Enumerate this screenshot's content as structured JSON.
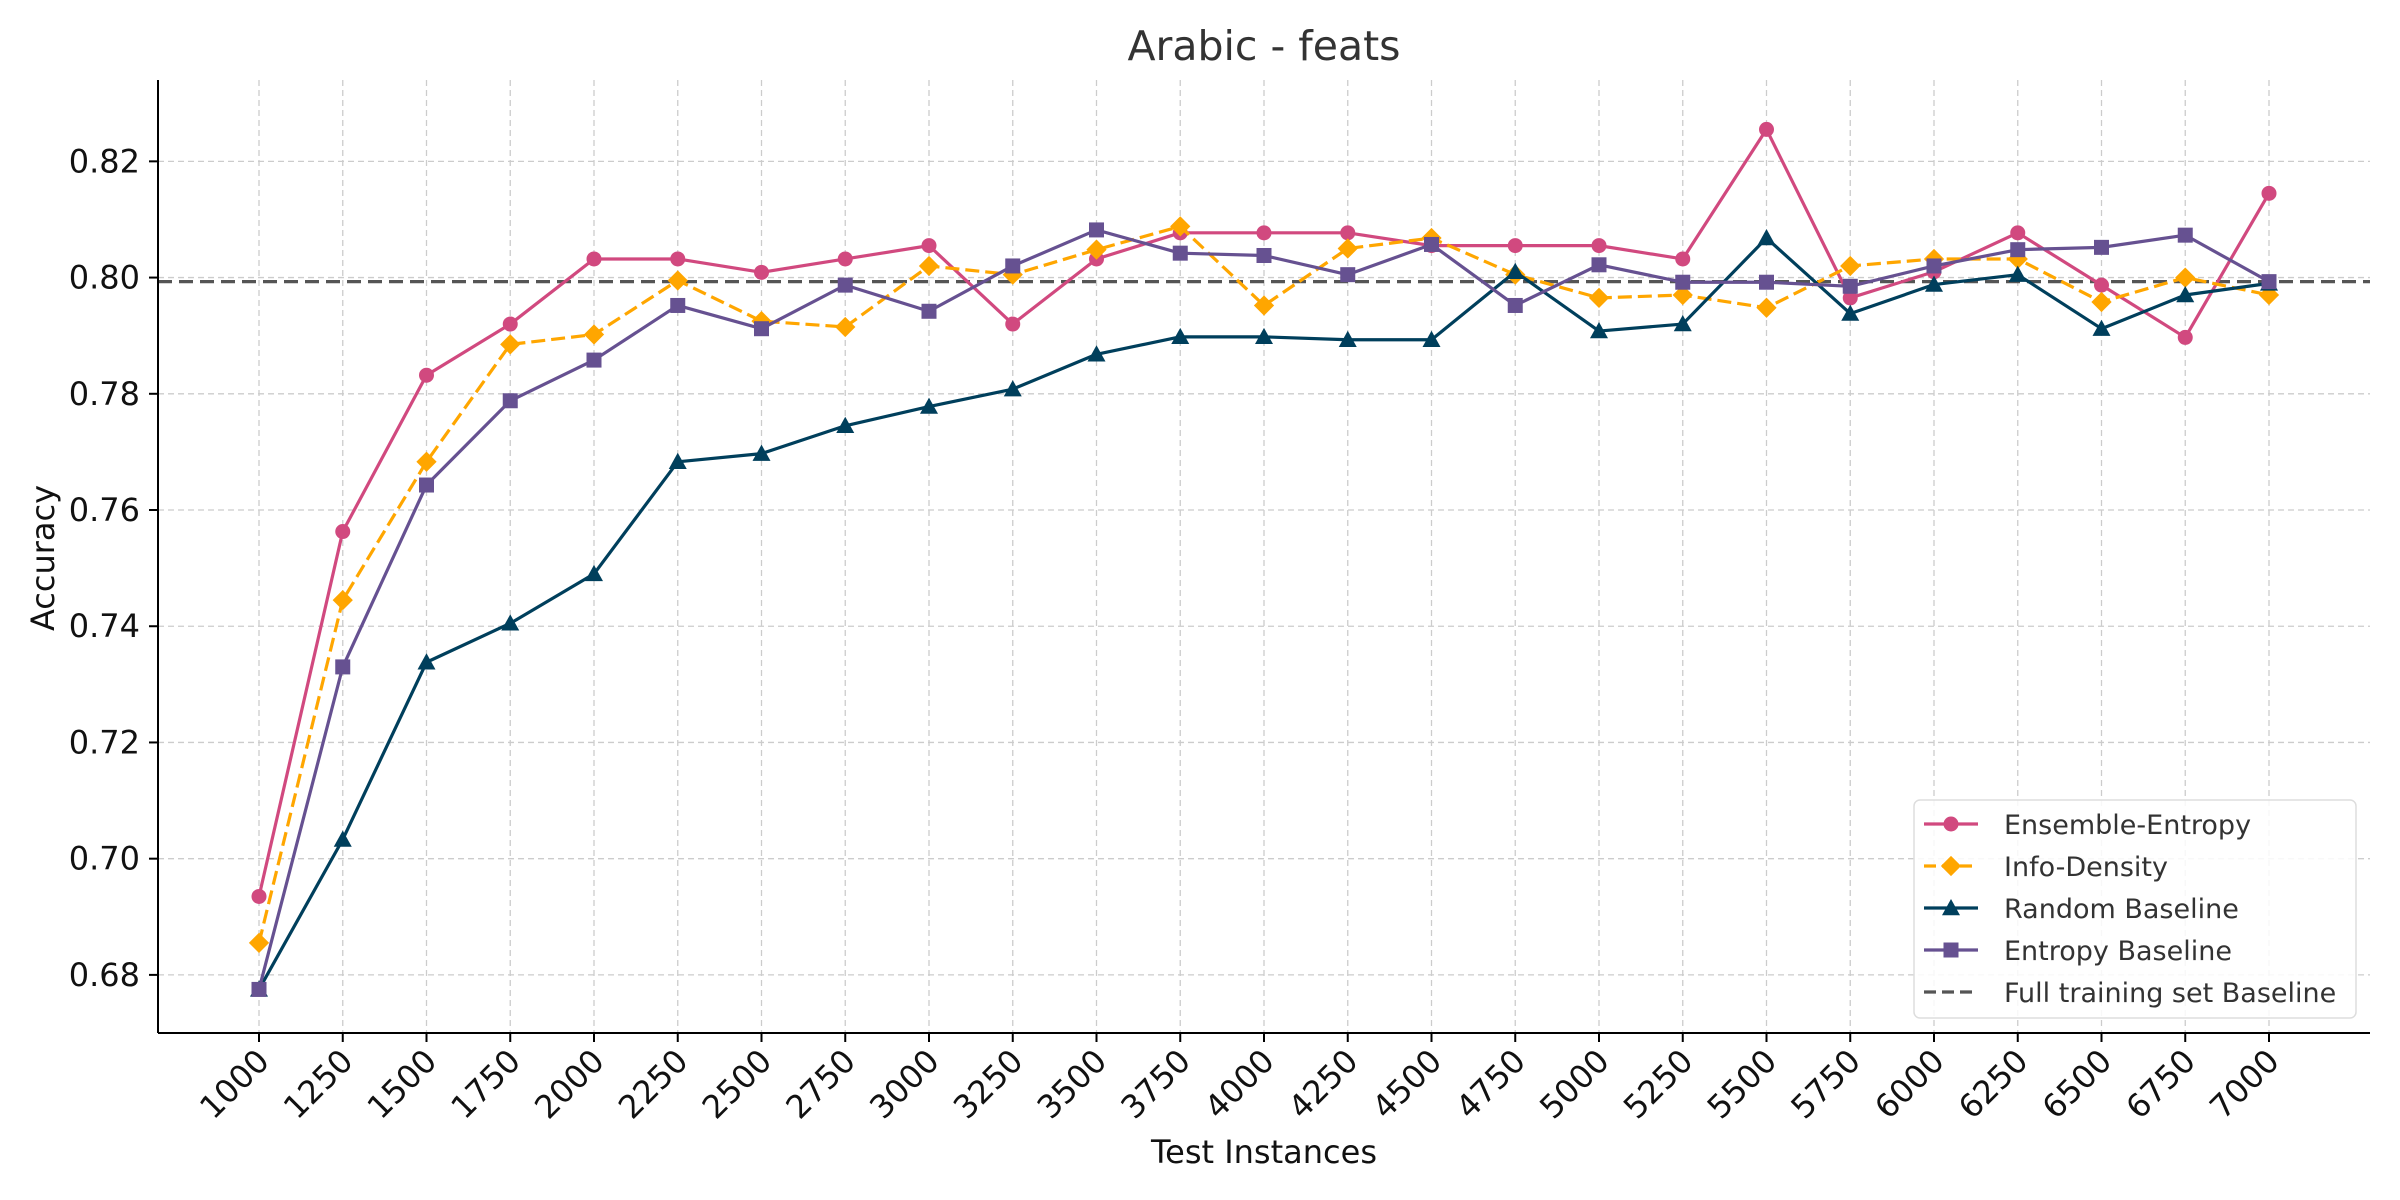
{
  "chart_data": {
    "type": "line",
    "title": "Arabic - feats",
    "xlabel": "Test Instances",
    "ylabel": "Accuracy",
    "x": [
      1000,
      1250,
      1500,
      1750,
      2000,
      2250,
      2500,
      2750,
      3000,
      3250,
      3500,
      3750,
      4000,
      4250,
      4500,
      4750,
      5000,
      5250,
      5500,
      5750,
      6000,
      6250,
      6500,
      6750,
      7000
    ],
    "x_tick_labels": [
      "1000",
      "1250",
      "1500",
      "1750",
      "2000",
      "2250",
      "2500",
      "2750",
      "3000",
      "3250",
      "3500",
      "3750",
      "4000",
      "4250",
      "4500",
      "4750",
      "5000",
      "5250",
      "5500",
      "5750",
      "6000",
      "6250",
      "6500",
      "6750",
      "7000"
    ],
    "ylim": [
      0.67,
      0.834
    ],
    "y_ticks": [
      0.68,
      0.7,
      0.72,
      0.74,
      0.76,
      0.78,
      0.8,
      0.82
    ],
    "y_tick_labels": [
      "0.68",
      "0.70",
      "0.72",
      "0.74",
      "0.76",
      "0.78",
      "0.80",
      "0.82"
    ],
    "grid": true,
    "legend_position": "bottom-right",
    "series": [
      {
        "name": "Ensemble-Entropy",
        "color": "#d1497f",
        "marker": "circle",
        "line_style": "solid",
        "values": [
          0.6935,
          0.7563,
          0.7832,
          0.792,
          0.8032,
          0.8032,
          0.8009,
          0.8032,
          0.8055,
          0.792,
          0.8032,
          0.8077,
          0.8077,
          0.8077,
          0.8055,
          0.8055,
          0.8055,
          0.8032,
          0.8255,
          0.7965,
          0.801,
          0.8077,
          0.7987,
          0.7897,
          0.8145
        ]
      },
      {
        "name": "Info-Density",
        "color": "#ffa600",
        "marker": "diamond",
        "line_style": "dashed",
        "values": [
          0.6855,
          0.7445,
          0.7683,
          0.7885,
          0.7902,
          0.7995,
          0.7925,
          0.7915,
          0.802,
          0.8005,
          0.8048,
          0.8088,
          0.7952,
          0.805,
          0.8068,
          0.8005,
          0.7965,
          0.797,
          0.7948,
          0.802,
          0.8032,
          0.8032,
          0.7958,
          0.8,
          0.797
        ]
      },
      {
        "name": "Random Baseline",
        "color": "#003f5c",
        "marker": "triangle",
        "line_style": "solid",
        "values": [
          0.6775,
          0.7033,
          0.7338,
          0.7405,
          0.749,
          0.7683,
          0.7697,
          0.7745,
          0.7778,
          0.7808,
          0.7868,
          0.7898,
          0.7898,
          0.7893,
          0.7893,
          0.801,
          0.7908,
          0.792,
          0.8068,
          0.7938,
          0.7988,
          0.8005,
          0.7912,
          0.797,
          0.799
        ]
      },
      {
        "name": "Entropy Baseline",
        "color": "#665191",
        "marker": "square",
        "line_style": "solid",
        "values": [
          0.6775,
          0.733,
          0.7643,
          0.7788,
          0.7858,
          0.7952,
          0.7912,
          0.7987,
          0.7942,
          0.802,
          0.8082,
          0.8042,
          0.8038,
          0.8005,
          0.8057,
          0.7952,
          0.8022,
          0.7992,
          0.7992,
          0.7985,
          0.802,
          0.8048,
          0.8052,
          0.8073,
          0.7993
        ]
      }
    ],
    "reference_line": {
      "name": "Full training set Baseline",
      "value": 0.7993,
      "color": "#555555",
      "line_style": "dashed"
    }
  }
}
